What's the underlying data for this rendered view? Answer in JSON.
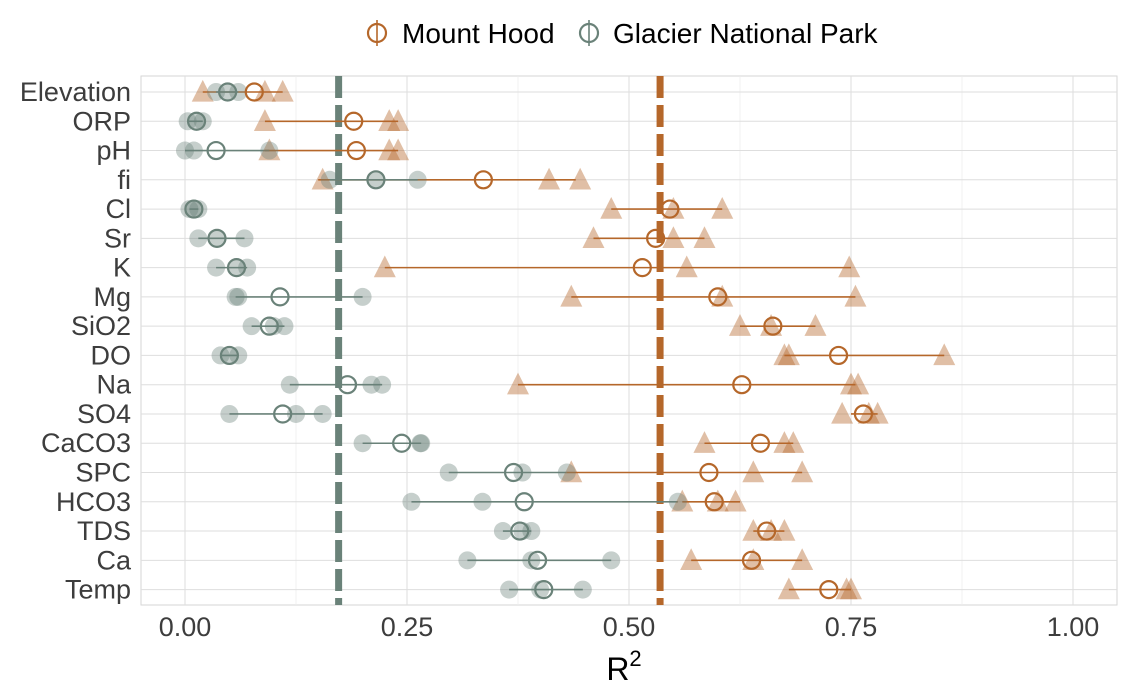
{
  "chart_data": {
    "type": "scatter",
    "xlabel": "R",
    "xlabel_superscript": "2",
    "xlim": [
      -0.05,
      1.05
    ],
    "x_ticks": [
      0,
      0.25,
      0.5,
      0.75,
      1.0
    ],
    "x_tick_labels": [
      "0.00",
      "0.25",
      "0.50",
      "0.75",
      "1.00"
    ],
    "grid": true,
    "legend_position": "top",
    "categories": [
      "Elevation",
      "ORP",
      "pH",
      "fi",
      "Cl",
      "Sr",
      "K",
      "Mg",
      "SiO2",
      "DO",
      "Na",
      "SO4",
      "CaCO3",
      "SPC",
      "HCO3",
      "TDS",
      "Ca",
      "Temp"
    ],
    "colors": {
      "Mount Hood": "#b5672a",
      "Glacier National Park": "#6a8279"
    },
    "series": [
      {
        "name": "Mount Hood",
        "mean_line": 0.535,
        "means": [
          0.078,
          0.19,
          0.193,
          0.336,
          0.546,
          0.53,
          0.515,
          0.6,
          0.662,
          0.736,
          0.627,
          0.764,
          0.648,
          0.59,
          0.596,
          0.655,
          0.638,
          0.725
        ],
        "range_low": [
          0.02,
          0.09,
          0.09,
          0.15,
          0.48,
          0.46,
          0.225,
          0.435,
          0.625,
          0.675,
          0.375,
          0.75,
          0.585,
          0.43,
          0.56,
          0.64,
          0.57,
          0.68
        ],
        "range_high": [
          0.11,
          0.24,
          0.24,
          0.44,
          0.605,
          0.585,
          0.75,
          0.755,
          0.71,
          0.855,
          0.755,
          0.78,
          0.685,
          0.695,
          0.625,
          0.675,
          0.695,
          0.75
        ],
        "points": [
          [
            0.02,
            0.09,
            0.11
          ],
          [
            0.09,
            0.23,
            0.24
          ],
          [
            0.095,
            0.23,
            0.24
          ],
          [
            0.155,
            0.41,
            0.445
          ],
          [
            0.48,
            0.55,
            0.605
          ],
          [
            0.46,
            0.55,
            0.585
          ],
          [
            0.225,
            0.565,
            0.748
          ],
          [
            0.435,
            0.605,
            0.755
          ],
          [
            0.625,
            0.66,
            0.71
          ],
          [
            0.675,
            0.68,
            0.855
          ],
          [
            0.375,
            0.75,
            0.758
          ],
          [
            0.74,
            0.77,
            0.78
          ],
          [
            0.585,
            0.675,
            0.685
          ],
          [
            0.435,
            0.64,
            0.695
          ],
          [
            0.56,
            0.6,
            0.62
          ],
          [
            0.64,
            0.66,
            0.675
          ],
          [
            0.57,
            0.64,
            0.695
          ],
          [
            0.68,
            0.745,
            0.75
          ]
        ]
      },
      {
        "name": "Glacier National Park",
        "mean_line": 0.173,
        "means": [
          0.048,
          0.013,
          0.035,
          0.215,
          0.01,
          0.036,
          0.058,
          0.107,
          0.095,
          0.05,
          0.183,
          0.11,
          0.244,
          0.37,
          0.382,
          0.377,
          0.397,
          0.404
        ],
        "range_low": [
          0.035,
          0.003,
          0.0,
          0.163,
          0.005,
          0.015,
          0.035,
          0.057,
          0.075,
          0.04,
          0.118,
          0.05,
          0.2,
          0.297,
          0.255,
          0.358,
          0.318,
          0.365
        ],
        "range_high": [
          0.06,
          0.02,
          0.095,
          0.262,
          0.015,
          0.067,
          0.07,
          0.2,
          0.112,
          0.06,
          0.222,
          0.155,
          0.266,
          0.43,
          0.555,
          0.39,
          0.48,
          0.448
        ],
        "points": [
          [
            0.035,
            0.048,
            0.06
          ],
          [
            0.003,
            0.013,
            0.02
          ],
          [
            0.0,
            0.01,
            0.095
          ],
          [
            0.163,
            0.215,
            0.262
          ],
          [
            0.005,
            0.01,
            0.015
          ],
          [
            0.015,
            0.036,
            0.067
          ],
          [
            0.035,
            0.058,
            0.07
          ],
          [
            0.057,
            0.06,
            0.2
          ],
          [
            0.075,
            0.1,
            0.112
          ],
          [
            0.04,
            0.05,
            0.06
          ],
          [
            0.118,
            0.21,
            0.222
          ],
          [
            0.05,
            0.125,
            0.155
          ],
          [
            0.2,
            0.265,
            0.266
          ],
          [
            0.297,
            0.38,
            0.43
          ],
          [
            0.255,
            0.335,
            0.555
          ],
          [
            0.358,
            0.38,
            0.39
          ],
          [
            0.318,
            0.39,
            0.48
          ],
          [
            0.365,
            0.4,
            0.448
          ]
        ]
      }
    ]
  }
}
